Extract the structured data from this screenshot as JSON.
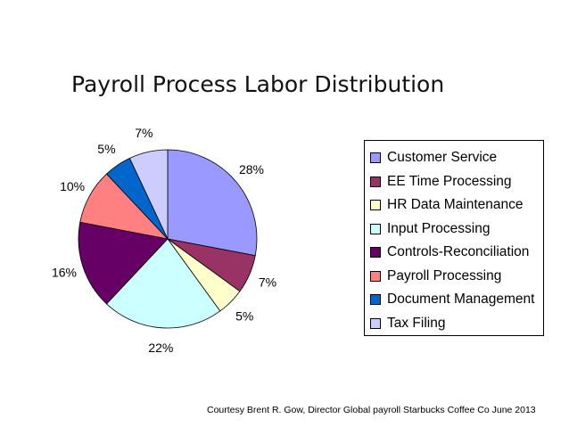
{
  "slide": {
    "title": "Payroll Process Labor Distribution",
    "footer": "Courtesy Brent R. Gow, Director Global payroll  Starbucks Coffee Co  June 2013"
  },
  "chart_data": {
    "type": "pie",
    "title": "",
    "start": "12 o'clock, clockwise",
    "legend_position": "right",
    "slices": [
      {
        "name": "Customer Service",
        "value": 28,
        "label": "28%",
        "color": "#9999ff"
      },
      {
        "name": "EE Time Processing",
        "value": 7,
        "label": "7%",
        "color": "#993366"
      },
      {
        "name": "HR Data Maintenance",
        "value": 5,
        "label": "5%",
        "color": "#ffffcc"
      },
      {
        "name": "Input Processing",
        "value": 22,
        "label": "22%",
        "color": "#ccffff"
      },
      {
        "name": "Controls-Reconciliation",
        "value": 16,
        "label": "16%",
        "color": "#660066"
      },
      {
        "name": "Payroll Processing",
        "value": 10,
        "label": "10%",
        "color": "#ff8080"
      },
      {
        "name": "Document Management",
        "value": 5,
        "label": "5%",
        "color": "#0066cc"
      },
      {
        "name": "Tax Filing",
        "value": 7,
        "label": "7%",
        "color": "#ccccff"
      }
    ]
  }
}
